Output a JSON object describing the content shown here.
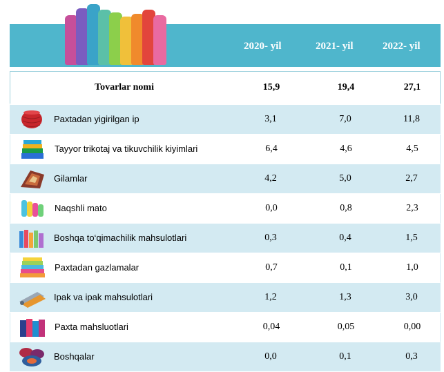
{
  "header": {
    "years": [
      "2020- yil",
      "2021- yil",
      "2022- yil"
    ]
  },
  "table": {
    "header_row": {
      "label": "Tovarlar nomi",
      "values": [
        "15,9",
        "19,4",
        "27,1"
      ]
    },
    "rows": [
      {
        "icon": "yarn-spool-icon",
        "label": "Paxtadan yigirilgan ip",
        "values": [
          "3,1",
          "7,0",
          "11,8"
        ]
      },
      {
        "icon": "folded-clothes-icon",
        "label": "Tayyor trikotaj va tikuvchilik kiyimlari",
        "values": [
          "6,4",
          "4,6",
          "4,5"
        ]
      },
      {
        "icon": "carpet-icon",
        "label": "Gilamlar",
        "values": [
          "4,2",
          "5,0",
          "2,7"
        ]
      },
      {
        "icon": "fabric-rolls-icon",
        "label": "Naqshli mato",
        "values": [
          "0,0",
          "0,8",
          "2,3"
        ]
      },
      {
        "icon": "textile-products-icon",
        "label": "Boshqa to‘qimachilik mahsulotlari",
        "values": [
          "0,3",
          "0,4",
          "1,5"
        ]
      },
      {
        "icon": "fabric-stack-icon",
        "label": "Paxtadan gazlamalar",
        "values": [
          "0,7",
          "0,1",
          "1,0"
        ]
      },
      {
        "icon": "silk-rolls-icon",
        "label": "Ipak va ipak mahsulotlari",
        "values": [
          "1,2",
          "1,3",
          "3,0"
        ]
      },
      {
        "icon": "towels-icon",
        "label": "Paxta mahsluotlari",
        "values": [
          "0,04",
          "0,05",
          "0,00"
        ]
      },
      {
        "icon": "bundled-textiles-icon",
        "label": "Boshqalar",
        "values": [
          "0,0",
          "0,1",
          "0,3"
        ]
      }
    ]
  },
  "colors": {
    "header_band": "#4fb6cc",
    "row_tint": "#d3eaf2"
  }
}
